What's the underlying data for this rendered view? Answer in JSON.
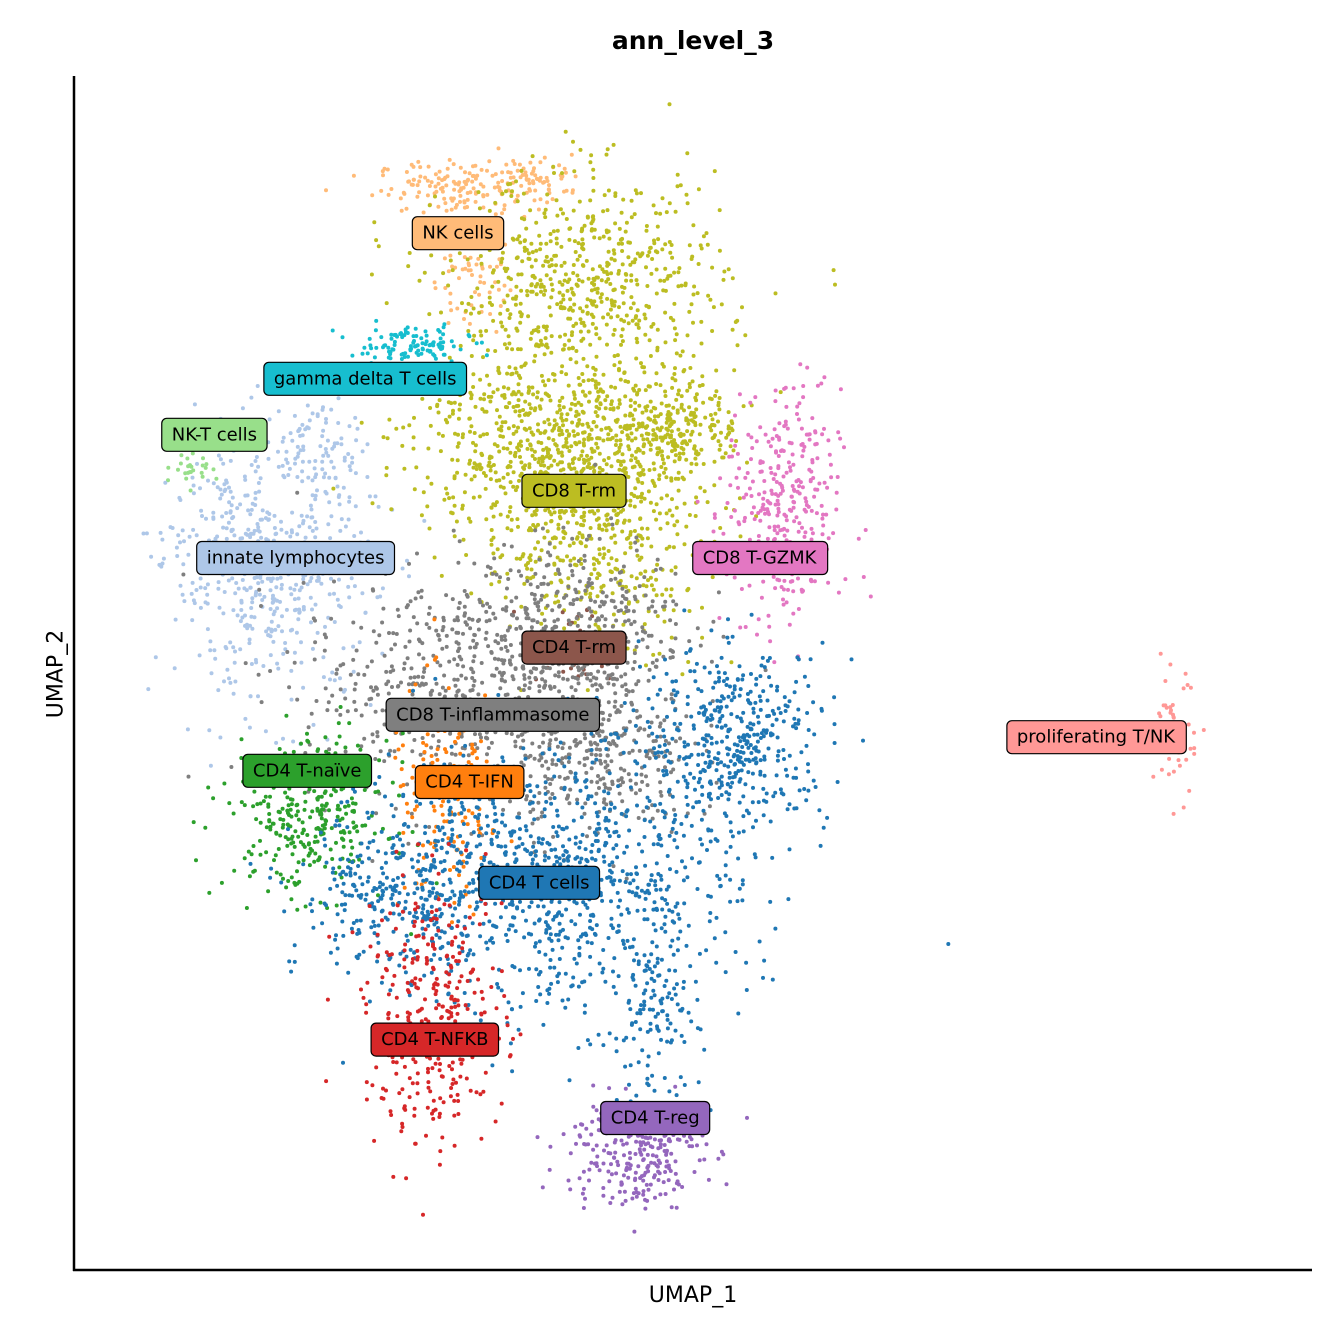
{
  "chart_data": {
    "type": "scatter",
    "title": "ann_level_3",
    "xlabel": "UMAP_1",
    "ylabel": "UMAP_2",
    "xlim": [
      0,
      100
    ],
    "ylim": [
      0,
      100
    ],
    "grid": false,
    "legend": "on data",
    "series": [
      {
        "name": "NK cells",
        "color": "#ffbb78",
        "label_at": [
          30,
          89
        ],
        "clusters": [
          [
            30,
            93,
            3.5,
            1.2,
            140
          ],
          [
            37,
            94,
            2,
            1,
            60
          ],
          [
            31,
            85,
            1.5,
            2.5,
            60
          ]
        ]
      },
      {
        "name": "gamma delta T cells",
        "color": "#17becf",
        "label_at": [
          22,
          76
        ],
        "clusters": [
          [
            26,
            79,
            2.5,
            0.8,
            110
          ]
        ]
      },
      {
        "name": "NK-T cells",
        "color": "#98df8a",
        "label_at": [
          9,
          71
        ],
        "clusters": [
          [
            7,
            68,
            0.8,
            0.8,
            25
          ]
        ]
      },
      {
        "name": "innate lymphocytes",
        "color": "#aec7e8",
        "label_at": [
          16,
          60
        ],
        "clusters": [
          [
            14,
            58,
            4.5,
            5.5,
            420
          ],
          [
            18,
            70,
            2.5,
            2.5,
            90
          ],
          [
            11,
            62,
            3,
            3,
            120
          ]
        ]
      },
      {
        "name": "CD8 T-rm",
        "color": "#bcbd22",
        "label_at": [
          40,
          66
        ],
        "clusters": [
          [
            41,
            84,
            6,
            5,
            650
          ],
          [
            38,
            70,
            6,
            4,
            650
          ],
          [
            42,
            62,
            5,
            5,
            450
          ],
          [
            49,
            72,
            2.5,
            2,
            200
          ]
        ]
      },
      {
        "name": "CD8 T-GZMK",
        "color": "#e377c2",
        "label_at": [
          56,
          60
        ],
        "clusters": [
          [
            58,
            64,
            2.5,
            5.5,
            330
          ]
        ]
      },
      {
        "name": "CD4 T-rm",
        "color": "#8c564b",
        "label_at": [
          40,
          52
        ],
        "clusters": [
          [
            40,
            52,
            2,
            2,
            40
          ]
        ]
      },
      {
        "name": "CD8 T-inflammasome",
        "color": "#7f7f7f",
        "label_at": [
          33,
          46
        ],
        "clusters": [
          [
            30,
            48,
            7,
            5,
            550
          ],
          [
            40,
            54,
            5,
            4,
            380
          ],
          [
            42,
            42,
            4,
            3.5,
            280
          ]
        ]
      },
      {
        "name": "CD4 T-IFN",
        "color": "#ff7f0e",
        "label_at": [
          31,
          40
        ],
        "clusters": [
          [
            29,
            38,
            2.5,
            5,
            160
          ]
        ]
      },
      {
        "name": "CD4 T-naïve",
        "color": "#2ca02c",
        "label_at": [
          17,
          41
        ],
        "clusters": [
          [
            17,
            37,
            3.5,
            3.5,
            300
          ]
        ]
      },
      {
        "name": "CD4 T cells",
        "color": "#1f77b4",
        "label_at": [
          37,
          31
        ],
        "clusters": [
          [
            38,
            31,
            8,
            6,
            950
          ],
          [
            54,
            44,
            4,
            4,
            430
          ],
          [
            24,
            30,
            4,
            3.5,
            230
          ],
          [
            47,
            19,
            2,
            4,
            110
          ]
        ]
      },
      {
        "name": "CD4 T-NFKB",
        "color": "#d62728",
        "label_at": [
          28,
          17
        ],
        "clusters": [
          [
            28,
            19,
            3,
            6,
            330
          ]
        ]
      },
      {
        "name": "CD4 T-reg",
        "color": "#9467bd",
        "label_at": [
          47,
          10
        ],
        "clusters": [
          [
            45,
            7,
            3,
            2.5,
            260
          ]
        ]
      },
      {
        "name": "proliferating T/NK",
        "color": "#ff9896",
        "label_at": [
          85,
          44
        ],
        "clusters": [
          [
            92,
            44,
            0.9,
            2.5,
            70
          ]
        ]
      }
    ]
  }
}
